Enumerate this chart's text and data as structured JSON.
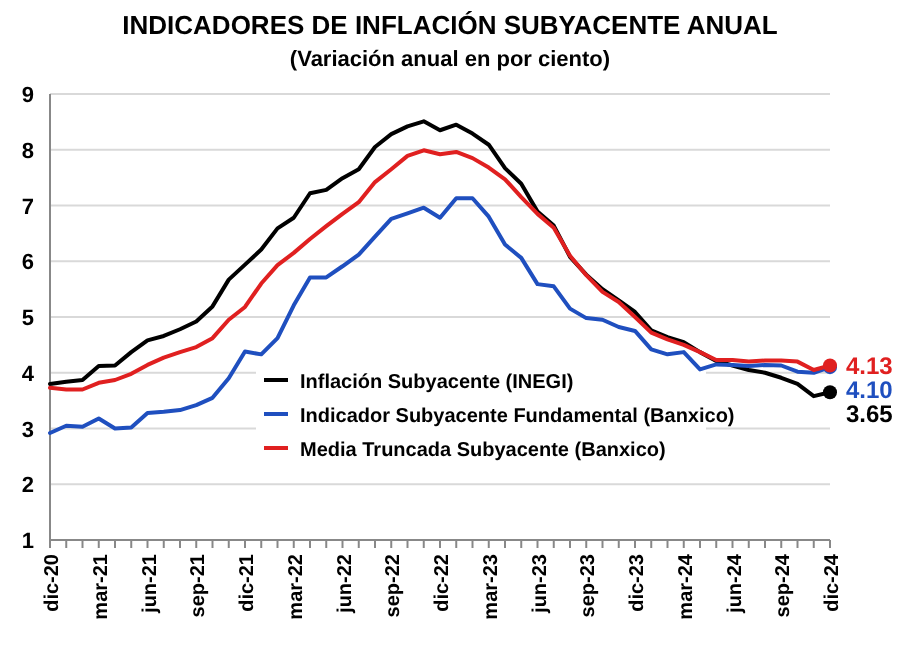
{
  "chart_data": {
    "type": "line",
    "title": "INDICADORES DE INFLACIÓN SUBYACENTE ANUAL",
    "subtitle": "(Variación anual en por ciento)",
    "categories": [
      "dic-20",
      null,
      null,
      "mar-21",
      null,
      null,
      "jun-21",
      null,
      null,
      "sep-21",
      null,
      null,
      "dic-21",
      null,
      null,
      "mar-22",
      null,
      null,
      "jun-22",
      null,
      null,
      "sep-22",
      null,
      null,
      "dic-22",
      null,
      null,
      "mar-23",
      null,
      null,
      "jun-23",
      null,
      null,
      "sep-23",
      null,
      null,
      "dic-23",
      null,
      null,
      "mar-24",
      null,
      null,
      "jun-24",
      null,
      null,
      "sep-24",
      null,
      null,
      "dic-24"
    ],
    "series": [
      {
        "name": "Inflación Subyacente (INEGI)",
        "color": "#000000",
        "values": [
          3.8,
          3.84,
          3.87,
          4.12,
          4.13,
          4.37,
          4.58,
          4.66,
          4.78,
          4.92,
          5.19,
          5.67,
          5.94,
          6.21,
          6.59,
          6.78,
          7.22,
          7.28,
          7.49,
          7.65,
          8.05,
          8.28,
          8.42,
          8.51,
          8.35,
          8.45,
          8.29,
          8.09,
          7.67,
          7.39,
          6.89,
          6.64,
          6.08,
          5.76,
          5.5,
          5.3,
          5.09,
          4.76,
          4.64,
          4.55,
          4.37,
          4.21,
          4.13,
          4.05,
          4.0,
          3.91,
          3.8,
          3.58,
          3.65
        ],
        "value_labels": [
          null,
          null,
          null,
          null,
          null,
          null,
          null,
          null,
          null,
          null,
          null,
          null,
          null,
          null,
          null,
          null,
          null,
          null,
          null,
          null,
          null,
          null,
          null,
          null,
          null,
          null,
          null,
          null,
          null,
          null,
          null,
          null,
          null,
          null,
          null,
          null,
          null,
          null,
          null,
          null,
          null,
          null,
          null,
          null,
          null,
          null,
          null,
          null,
          "3.65"
        ]
      },
      {
        "name": "Indicador Subyacente Fundamental (Banxico)",
        "color": "#1f4fbf",
        "values": [
          2.92,
          3.05,
          3.03,
          3.18,
          3.0,
          3.02,
          3.28,
          3.3,
          3.33,
          3.42,
          3.55,
          3.9,
          4.38,
          4.33,
          4.62,
          5.21,
          5.71,
          5.71,
          5.91,
          6.12,
          6.44,
          6.76,
          6.86,
          6.96,
          6.78,
          7.13,
          7.13,
          6.8,
          6.3,
          6.06,
          5.59,
          5.55,
          5.15,
          4.98,
          4.95,
          4.82,
          4.75,
          4.42,
          4.33,
          4.37,
          4.06,
          4.15,
          4.14,
          4.12,
          4.14,
          4.13,
          4.02,
          4.0,
          4.1
        ],
        "value_labels": [
          null,
          null,
          null,
          null,
          null,
          null,
          null,
          null,
          null,
          null,
          null,
          null,
          null,
          null,
          null,
          null,
          null,
          null,
          null,
          null,
          null,
          null,
          null,
          null,
          null,
          null,
          null,
          null,
          null,
          null,
          null,
          null,
          null,
          null,
          null,
          null,
          null,
          null,
          null,
          null,
          null,
          null,
          null,
          null,
          null,
          null,
          null,
          null,
          "4.10"
        ]
      },
      {
        "name": "Media Truncada Subyacente (Banxico)",
        "color": "#e02020",
        "values": [
          3.73,
          3.7,
          3.7,
          3.82,
          3.87,
          3.98,
          4.14,
          4.27,
          4.37,
          4.46,
          4.62,
          4.95,
          5.18,
          5.6,
          5.93,
          6.15,
          6.4,
          6.63,
          6.85,
          7.06,
          7.42,
          7.65,
          7.89,
          7.99,
          7.92,
          7.96,
          7.85,
          7.68,
          7.47,
          7.15,
          6.85,
          6.6,
          6.1,
          5.75,
          5.45,
          5.27,
          5.0,
          4.72,
          4.6,
          4.5,
          4.37,
          4.23,
          4.23,
          4.2,
          4.22,
          4.22,
          4.2,
          4.05,
          4.13
        ],
        "value_labels": [
          null,
          null,
          null,
          null,
          null,
          null,
          null,
          null,
          null,
          null,
          null,
          null,
          null,
          null,
          null,
          null,
          null,
          null,
          null,
          null,
          null,
          null,
          null,
          null,
          null,
          null,
          null,
          null,
          null,
          null,
          null,
          null,
          null,
          null,
          null,
          null,
          null,
          null,
          null,
          null,
          null,
          null,
          null,
          null,
          null,
          null,
          null,
          null,
          "4.13"
        ]
      }
    ],
    "ylim": [
      1,
      9
    ],
    "yticks": [
      1,
      2,
      3,
      4,
      5,
      6,
      7,
      8,
      9
    ],
    "grid": "y",
    "legend": "bottom",
    "line_style": "solid"
  }
}
